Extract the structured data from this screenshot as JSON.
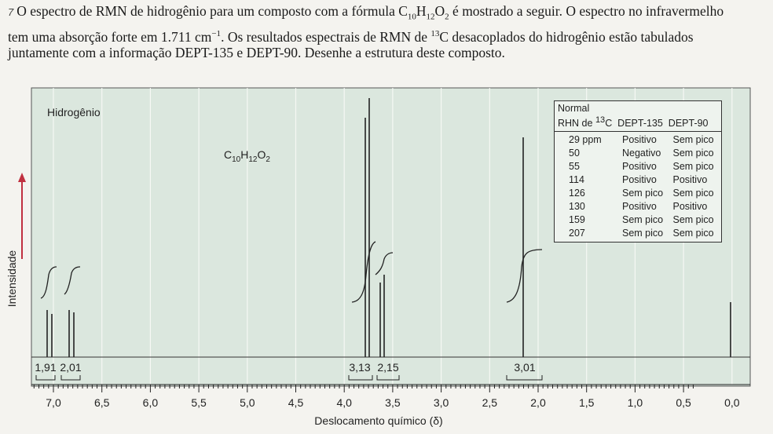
{
  "problem": {
    "number": "7",
    "text": [
      "O espectro de RMN de hidrogênio para um composto com a fórmula C",
      "10",
      "H",
      "12",
      "O",
      "2",
      " é mostrado a seguir. O espectro no infravermelho tem uma absorção forte em 1.711 cm",
      "−1",
      ". Os resultados espectrais de RMN de ",
      "13",
      "C desacoplados do hidrogênio estão tabulados juntamente com a informação DEPT-135 e DEPT-90. Desenhe a estrutura deste composto."
    ]
  },
  "spectrum": {
    "label": "Hidrogênio",
    "formula": [
      "C",
      "10",
      "H",
      "12",
      "O",
      "2"
    ],
    "y_axis_label": "Intensidade",
    "x_axis_label": "Deslocamento químico (δ)",
    "x_tick_labels": [
      "7,0",
      "6,5",
      "6,0",
      "5,5",
      "5,0",
      "4,5",
      "4,0",
      "3,5",
      "3,0",
      "2,5",
      "2,0",
      "1,5",
      "1,0",
      "0,5",
      "0,0"
    ],
    "integrations": [
      "1,91",
      "2,01",
      "3,13",
      "2,15",
      "3,01"
    ]
  },
  "table": {
    "header": {
      "normal": "Normal",
      "rhn": "RHN de ",
      "isotope": "13",
      "element": "C",
      "dept135": "DEPT-135",
      "dept90": "DEPT-90"
    },
    "rows": [
      [
        "29 ppm",
        "Positivo",
        "Sem pico"
      ],
      [
        "50",
        "Negativo",
        "Sem pico"
      ],
      [
        "55",
        "Positivo",
        "Sem pico"
      ],
      [
        "114",
        "Positivo",
        "Positivo"
      ],
      [
        "126",
        "Sem pico",
        "Sem pico"
      ],
      [
        "130",
        "Positivo",
        "Positivo"
      ],
      [
        "159",
        "Sem pico",
        "Sem pico"
      ],
      [
        "207",
        "Sem pico",
        "Sem pico"
      ]
    ]
  }
}
